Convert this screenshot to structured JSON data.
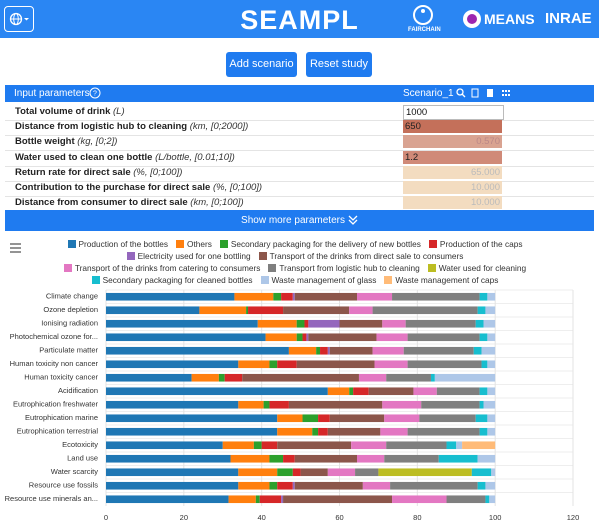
{
  "header": {
    "title": "SEAMPL",
    "logos": [
      "FAIRCHAIN",
      "MEANS",
      "INRAE"
    ]
  },
  "buttons": [
    "Add scenario",
    "Reset study"
  ],
  "parameters": {
    "title": "Input parameters",
    "scenario": "Scenario_1",
    "show_more": "Show more parameters",
    "rows": [
      {
        "label": "Total volume of drink",
        "unit": "(L)",
        "value": "1000"
      },
      {
        "label": "Distance from logistic hub to cleaning",
        "unit": "(km, [0;2000])",
        "value": "650"
      },
      {
        "label": "Bottle weight",
        "unit": "(kg, [0;2])",
        "value": "0.570"
      },
      {
        "label": "Water used to clean one bottle",
        "unit": "(L/bottle, [0.01;10])",
        "value": "1.2"
      },
      {
        "label": "Return rate for direct sale",
        "unit": "(%, [0;100])",
        "value": "65.000"
      },
      {
        "label": "Contribution to the purchase for direct sale",
        "unit": "(%, [0;100])",
        "value": "10.000"
      },
      {
        "label": "Distance from consumer to direct sale",
        "unit": "(km, [0;100])",
        "value": "10.000"
      }
    ]
  },
  "chart_data": {
    "type": "bar",
    "orientation": "horizontal",
    "stacked": true,
    "grid": true,
    "categories": [
      "Climate change",
      "Ozone depletion",
      "Ionising radiation",
      "Photochemical ozone for...",
      "Particulate matter",
      "Human toxicity non cancer",
      "Human toxicity cancer",
      "Acidification",
      "Eutrophication freshwater",
      "Eutrophication marine",
      "Eutrophication terrestrial",
      "Ecotoxicity",
      "Land use",
      "Water scarcity",
      "Resource use fossils",
      "Resource use minerals an..."
    ],
    "series": [
      {
        "name": "Production of the bottles",
        "color": "#1f77b4",
        "values": [
          33,
          24,
          39,
          41,
          47,
          34,
          22,
          57,
          34,
          44,
          44,
          30,
          32,
          34,
          34,
          31.5
        ]
      },
      {
        "name": "Others",
        "color": "#ff7f0e",
        "values": [
          10,
          12,
          10,
          8,
          7,
          8,
          7,
          5.5,
          6.5,
          6.5,
          9,
          8,
          10,
          10,
          8,
          7
        ]
      },
      {
        "name": "Secondary packaging for the delivery of new bottles",
        "color": "#2ca02c",
        "values": [
          2,
          0.5,
          2,
          1.5,
          1,
          2,
          1.5,
          1,
          1.5,
          4,
          1.5,
          2,
          3.5,
          4,
          2,
          1
        ]
      },
      {
        "name": "Production of the caps",
        "color": "#d62728",
        "values": [
          3,
          9,
          1,
          1,
          2,
          5,
          4.5,
          4,
          5,
          3,
          2.5,
          4,
          3,
          2,
          4,
          5.5
        ]
      },
      {
        "name": "Electricity used for one bottling",
        "color": "#9467bd",
        "values": [
          0.5,
          0,
          8,
          0.5,
          0.5,
          0,
          0,
          0,
          0,
          0,
          0,
          0,
          0,
          0,
          0.5,
          0.5
        ]
      },
      {
        "name": "Transport of the drinks from direct sale to consumers",
        "color": "#8c564b",
        "values": [
          16,
          17,
          11,
          17.5,
          11,
          20,
          30,
          11.5,
          24,
          14,
          13.5,
          19,
          16,
          7,
          17.5,
          28
        ]
      },
      {
        "name": "Transport of the drinks from catering to consumers",
        "color": "#e377c2",
        "values": [
          9,
          6,
          6,
          8,
          8,
          8.5,
          7,
          6,
          10,
          9,
          7,
          9,
          7,
          7,
          7,
          14
        ]
      },
      {
        "name": "Transport from logistic hub to cleaning",
        "color": "#7f7f7f",
        "values": [
          22.5,
          27,
          18,
          18.5,
          18,
          19,
          11.5,
          11,
          15,
          14.5,
          18.5,
          15.5,
          14,
          6,
          22.5,
          10
        ]
      },
      {
        "name": "Water used for cleaning",
        "color": "#bcbd22",
        "values": [
          0,
          0,
          0,
          0,
          0,
          0,
          0,
          0,
          0,
          0,
          0,
          0,
          0,
          24,
          0,
          0
        ]
      },
      {
        "name": "Secondary packaging for cleaned bottles",
        "color": "#17becf",
        "values": [
          2,
          2,
          2,
          2,
          2,
          1.5,
          1,
          2,
          1,
          3,
          2,
          2.5,
          10,
          5,
          2,
          1
        ]
      },
      {
        "name": "Waste management of glass",
        "color": "#aec7e8",
        "values": [
          2,
          2.5,
          3,
          2,
          3.5,
          2,
          15.5,
          2,
          3,
          2,
          2,
          1.5,
          4.5,
          1,
          2.5,
          1.5
        ]
      },
      {
        "name": "Waste management of caps",
        "color": "#ffbb78",
        "values": [
          0,
          0,
          0,
          0,
          0,
          0,
          0,
          0,
          0,
          0,
          0,
          8.5,
          0,
          0,
          0,
          0
        ]
      }
    ],
    "xlim": [
      0,
      120
    ],
    "xticks": [
      0,
      20,
      40,
      60,
      80,
      100,
      120
    ]
  }
}
